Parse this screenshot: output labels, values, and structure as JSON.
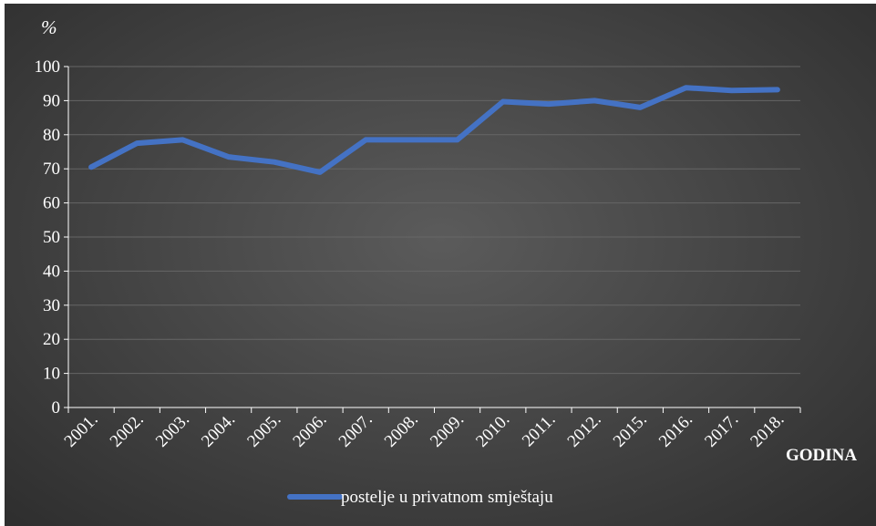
{
  "chart_data": {
    "type": "line",
    "title": "",
    "ylabel": "%",
    "xlabel": "GODINA",
    "ylim": [
      0,
      100
    ],
    "yticks": [
      0,
      10,
      20,
      30,
      40,
      50,
      60,
      70,
      80,
      90,
      100
    ],
    "grid": true,
    "legend_position": "bottom",
    "categories": [
      "2001.",
      "2002.",
      "2003.",
      "2004.",
      "2005.",
      "2006.",
      "2007.",
      "2008.",
      "2009.",
      "2010.",
      "2011.",
      "2012.",
      "2015.",
      "2016.",
      "2017.",
      "2018."
    ],
    "series": [
      {
        "name": "postelje u privatnom smještaju",
        "color": "#4472c4",
        "values": [
          70.5,
          77.5,
          78.5,
          73.5,
          72,
          69,
          78.5,
          78.5,
          78.5,
          89.7,
          89,
          90,
          88,
          93.8,
          93,
          93.2
        ]
      }
    ],
    "colors": {
      "background_center": "#5b5b5b",
      "background_edge": "#2f2f2f",
      "gridline": "#666666",
      "axis": "#ffffff",
      "text": "#ffffff"
    }
  }
}
